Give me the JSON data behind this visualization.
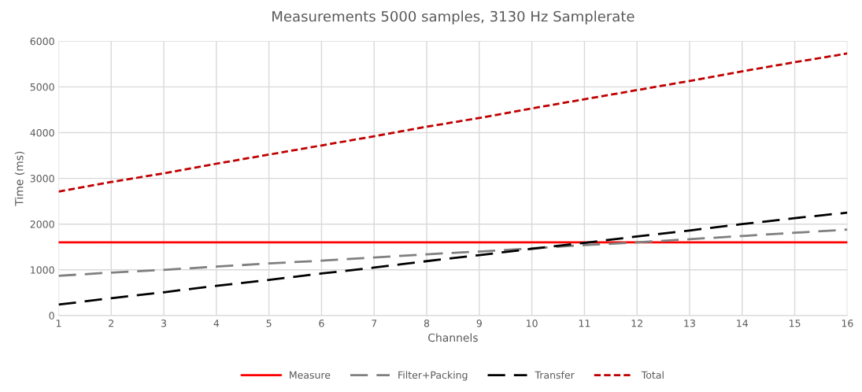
{
  "chart_data": {
    "type": "line",
    "title": "Measurements 5000 samples, 3130 Hz Samplerate",
    "xlabel": "Channels",
    "ylabel": "Time (ms)",
    "x": [
      1,
      2,
      3,
      4,
      5,
      6,
      7,
      8,
      9,
      10,
      11,
      12,
      13,
      14,
      15,
      16
    ],
    "series": [
      {
        "name": "Measure",
        "color": "#ff0000",
        "line_style": "solid",
        "values": [
          1600,
          1600,
          1600,
          1600,
          1600,
          1600,
          1600,
          1600,
          1600,
          1600,
          1600,
          1600,
          1600,
          1600,
          1600,
          1600
        ]
      },
      {
        "name": "Filter+Packing",
        "color": "#808080",
        "line_style": "dashed",
        "values": [
          870,
          940,
          1000,
          1070,
          1140,
          1200,
          1270,
          1340,
          1400,
          1470,
          1540,
          1600,
          1670,
          1740,
          1810,
          1880
        ]
      },
      {
        "name": "Transfer",
        "color": "#000000",
        "line_style": "dashed",
        "values": [
          240,
          380,
          510,
          650,
          780,
          920,
          1050,
          1190,
          1320,
          1460,
          1590,
          1730,
          1860,
          2000,
          2130,
          2250
        ]
      },
      {
        "name": "Total",
        "color": "#c00000",
        "line_style": "dotted",
        "values": [
          2710,
          2920,
          3110,
          3320,
          3520,
          3720,
          3920,
          4130,
          4320,
          4530,
          4730,
          4930,
          5130,
          5340,
          5540,
          5730
        ]
      }
    ],
    "xlim": [
      1,
      16
    ],
    "xticks": [
      1,
      2,
      3,
      4,
      5,
      6,
      7,
      8,
      9,
      10,
      11,
      12,
      13,
      14,
      15,
      16
    ],
    "ylim": [
      0,
      6000
    ],
    "yticks": [
      0,
      1000,
      2000,
      3000,
      4000,
      5000,
      6000
    ],
    "grid": true,
    "legend": "bottom",
    "marker": "none"
  }
}
